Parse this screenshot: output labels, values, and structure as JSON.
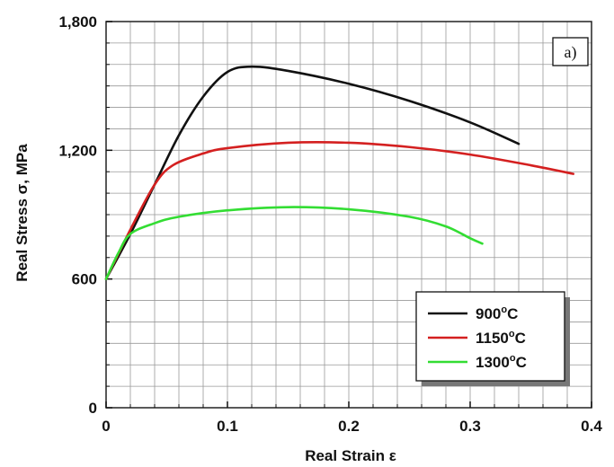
{
  "chart_data": {
    "type": "line",
    "panel_label": "a)",
    "xlabel": "Real Strain ε",
    "ylabel": "Real Stress σ, MPa",
    "xlim": [
      0,
      0.4
    ],
    "ylim": [
      0,
      1800
    ],
    "x_ticks": [
      "0",
      "0.1",
      "0.2",
      "0.3",
      "0.4"
    ],
    "y_ticks": [
      "0",
      "600",
      "1,200",
      "1,800"
    ],
    "grid": true,
    "legend_position": "bottom-right",
    "colors": {
      "900": "#111111",
      "1150": "#d42020",
      "1300": "#33dd33"
    },
    "series": [
      {
        "name": "900°C",
        "label_main": "900",
        "label_sup": "o",
        "label_tail": "C",
        "color": "#111111",
        "points": [
          [
            0,
            600
          ],
          [
            0.02,
            810
          ],
          [
            0.04,
            1040
          ],
          [
            0.06,
            1270
          ],
          [
            0.08,
            1450
          ],
          [
            0.1,
            1565
          ],
          [
            0.12,
            1590
          ],
          [
            0.15,
            1570
          ],
          [
            0.2,
            1510
          ],
          [
            0.25,
            1430
          ],
          [
            0.3,
            1330
          ],
          [
            0.34,
            1230
          ]
        ]
      },
      {
        "name": "1150°C",
        "label_main": "1150",
        "label_sup": "o",
        "label_tail": "C",
        "color": "#d42020",
        "points": [
          [
            0,
            600
          ],
          [
            0.02,
            830
          ],
          [
            0.04,
            1040
          ],
          [
            0.055,
            1130
          ],
          [
            0.08,
            1185
          ],
          [
            0.1,
            1210
          ],
          [
            0.15,
            1235
          ],
          [
            0.2,
            1235
          ],
          [
            0.25,
            1215
          ],
          [
            0.3,
            1180
          ],
          [
            0.35,
            1130
          ],
          [
            0.385,
            1090
          ]
        ]
      },
      {
        "name": "1300°C",
        "label_main": "1300",
        "label_sup": "o",
        "label_tail": "C",
        "color": "#33dd33",
        "points": [
          [
            0,
            600
          ],
          [
            0.01,
            720
          ],
          [
            0.02,
            810
          ],
          [
            0.04,
            860
          ],
          [
            0.06,
            890
          ],
          [
            0.1,
            920
          ],
          [
            0.15,
            935
          ],
          [
            0.2,
            925
          ],
          [
            0.25,
            890
          ],
          [
            0.28,
            845
          ],
          [
            0.3,
            790
          ],
          [
            0.31,
            765
          ]
        ]
      }
    ]
  }
}
